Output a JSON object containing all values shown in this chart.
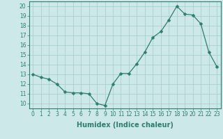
{
  "x": [
    0,
    1,
    2,
    3,
    4,
    5,
    6,
    7,
    8,
    9,
    10,
    11,
    12,
    13,
    14,
    15,
    16,
    17,
    18,
    19,
    20,
    21,
    22,
    23
  ],
  "y": [
    13.0,
    12.7,
    12.5,
    12.0,
    11.2,
    11.1,
    11.1,
    11.0,
    10.0,
    9.8,
    12.0,
    13.1,
    13.1,
    14.1,
    15.3,
    16.8,
    17.4,
    18.6,
    20.0,
    19.2,
    19.1,
    18.2,
    15.3,
    13.8
  ],
  "line_color": "#2e7d6e",
  "marker": "D",
  "marker_size": 2.5,
  "bg_color": "#cce8e8",
  "grid_color": "#aacece",
  "xlabel": "Humidex (Indice chaleur)",
  "xlabel_fontsize": 7,
  "ylim": [
    9.5,
    20.5
  ],
  "yticks": [
    10,
    11,
    12,
    13,
    14,
    15,
    16,
    17,
    18,
    19,
    20
  ],
  "xlim": [
    -0.5,
    23.5
  ],
  "xticks": [
    0,
    1,
    2,
    3,
    4,
    5,
    6,
    7,
    8,
    9,
    10,
    11,
    12,
    13,
    14,
    15,
    16,
    17,
    18,
    19,
    20,
    21,
    22,
    23
  ],
  "tick_fontsize": 5.5
}
